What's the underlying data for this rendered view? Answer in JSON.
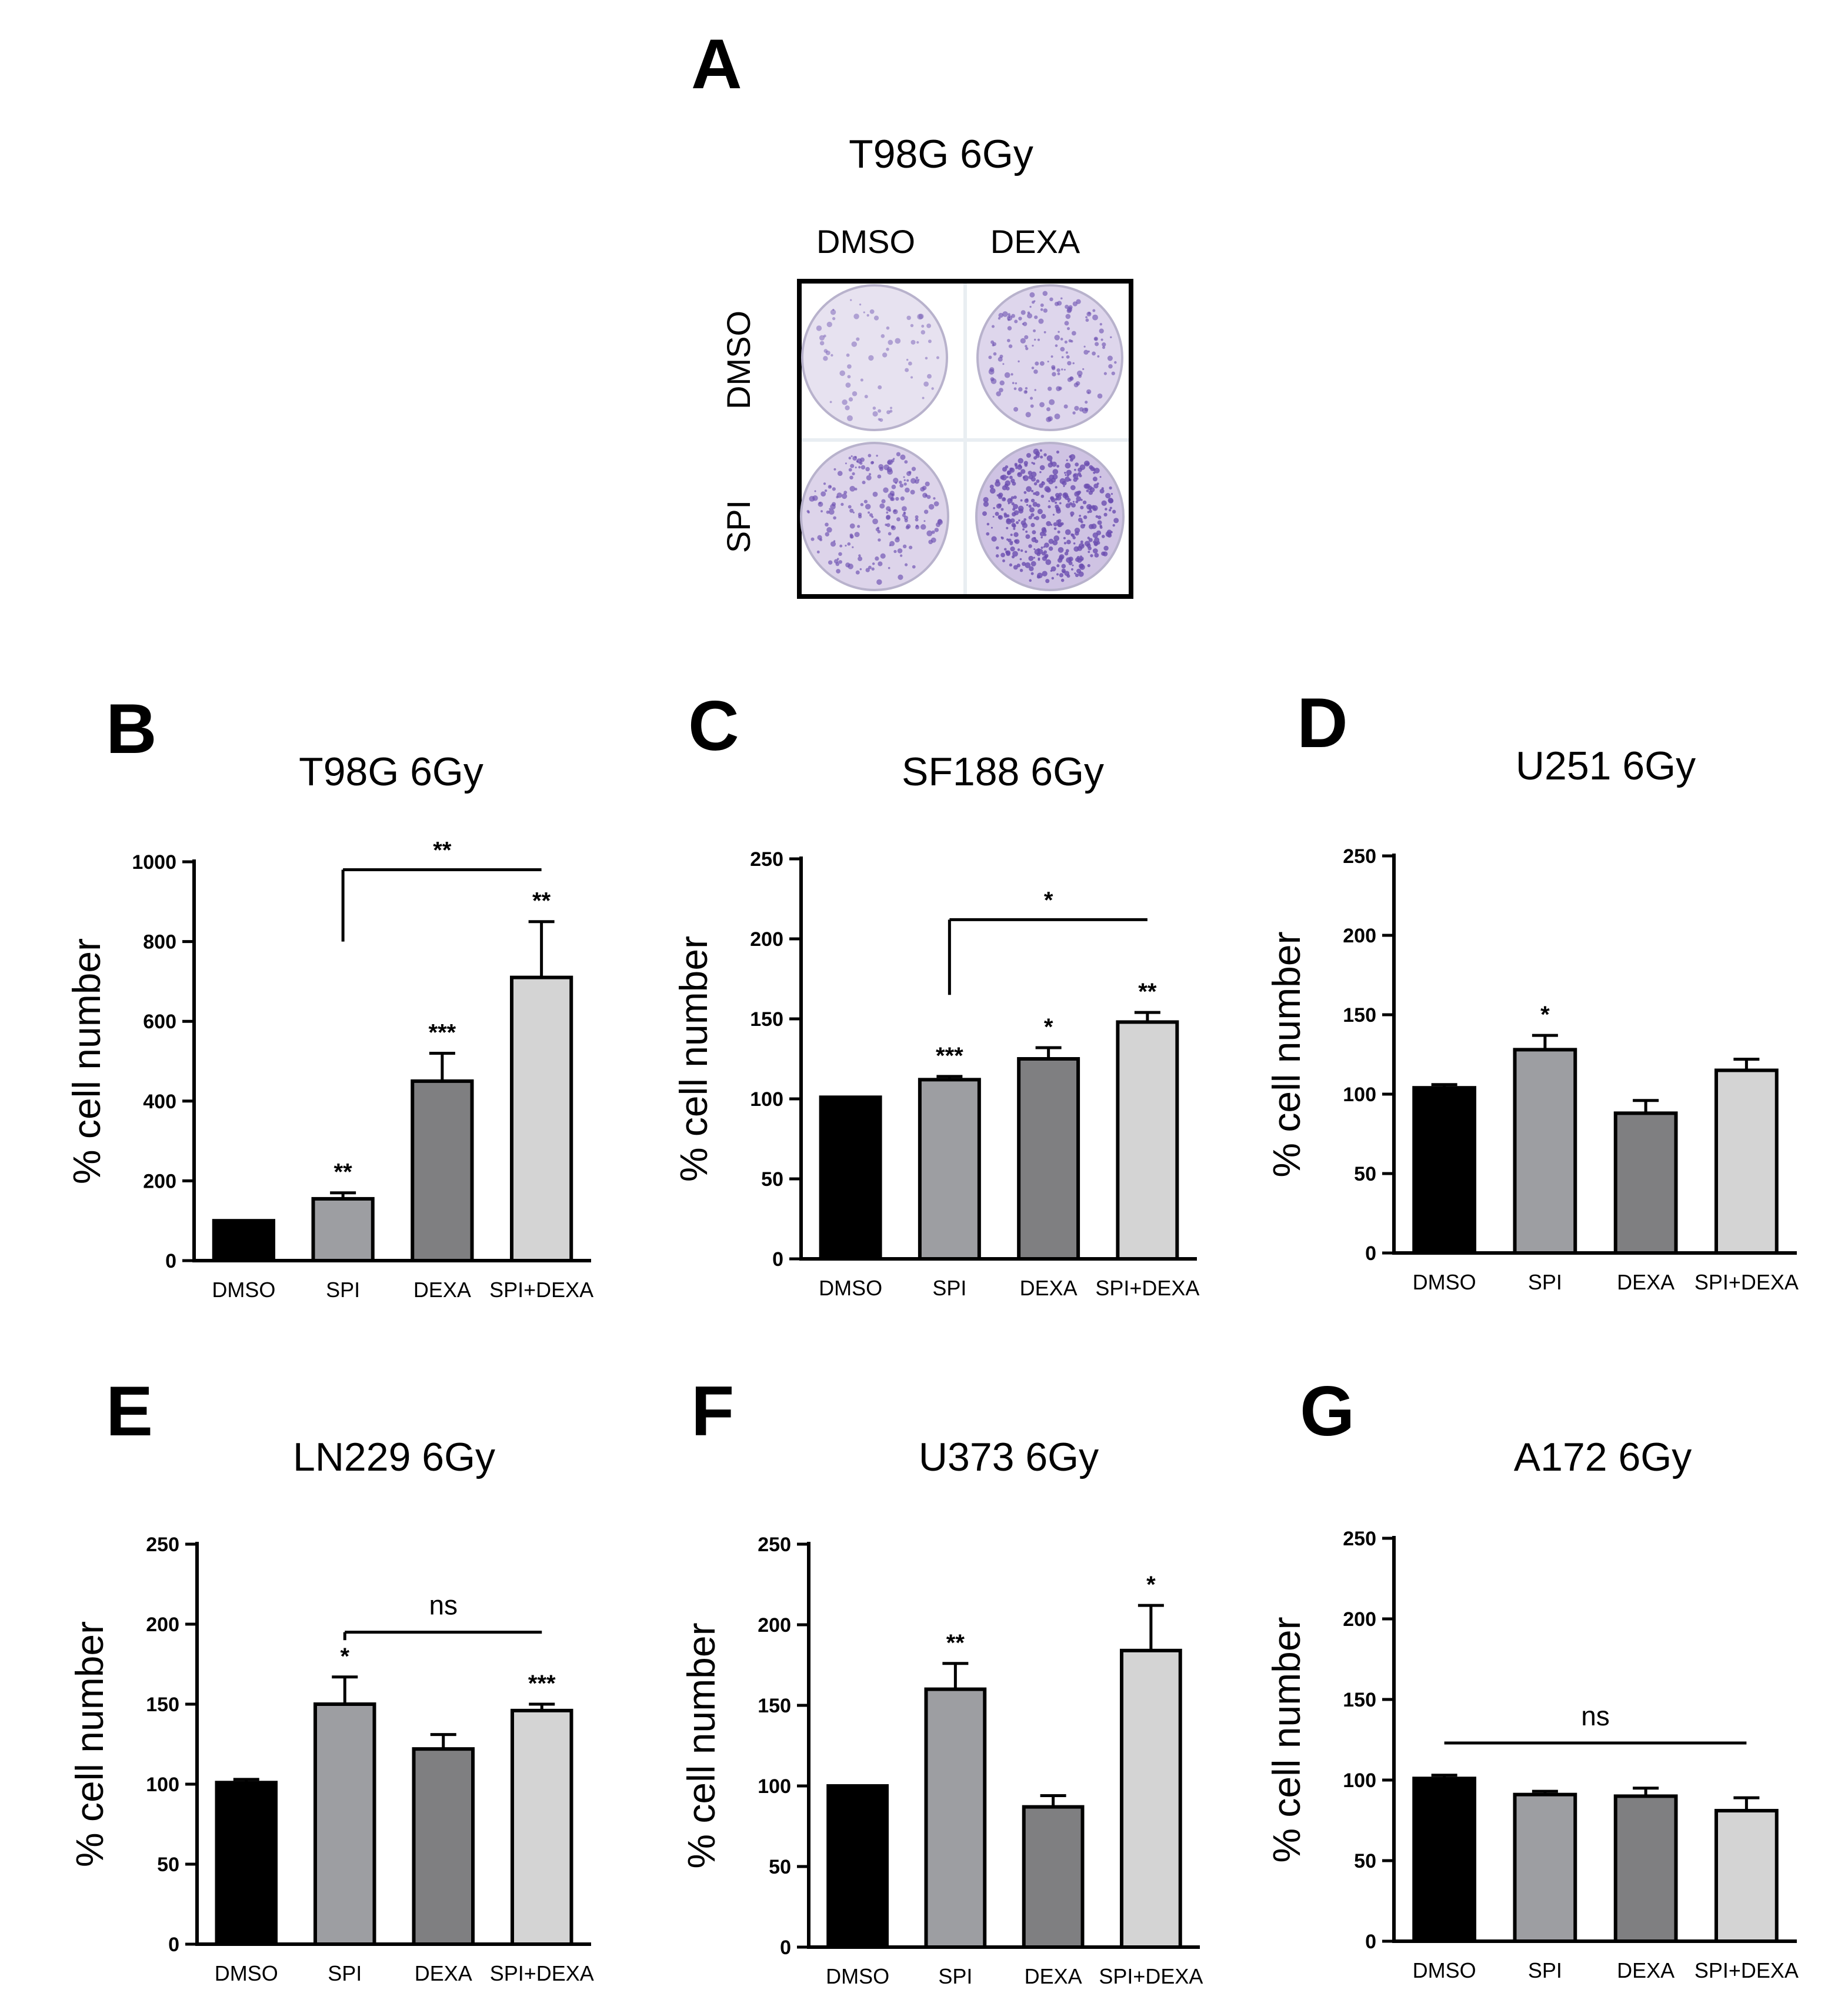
{
  "colors": {
    "DMSO": "#000000",
    "SPI": "#9d9ea2",
    "DEXA": "#7f7f81",
    "SPI+DEXA": "#d4d4d4",
    "stain": "#6b4fb0",
    "plate_bg": "#e6e1f0"
  },
  "panel_a": {
    "letter": "A",
    "title": "T98G   6Gy",
    "col_labels": [
      "DMSO",
      "DEXA"
    ],
    "row_labels": [
      "DMSO",
      "SPI"
    ]
  },
  "chart_data": [
    {
      "id": "B",
      "type": "bar",
      "title": "T98G 6Gy",
      "ylabel": "% cell number",
      "xlabel": "",
      "ylim": [
        0,
        1000
      ],
      "yticks": [
        0,
        200,
        400,
        600,
        800,
        1000
      ],
      "categories": [
        "DMSO",
        "SPI",
        "DEXA",
        "SPI+DEXA"
      ],
      "values": [
        100,
        155,
        450,
        710
      ],
      "errors": [
        0,
        15,
        70,
        140
      ],
      "significance": [
        "",
        "**",
        "***",
        "**"
      ],
      "comparison": {
        "from": 1,
        "to": 3,
        "label": "**",
        "y": 980,
        "drop_y": 800
      }
    },
    {
      "id": "C",
      "type": "bar",
      "title": "SF188 6Gy",
      "ylabel": "% cell number",
      "xlabel": "",
      "ylim": [
        0,
        250
      ],
      "yticks": [
        0,
        50,
        100,
        150,
        200,
        250
      ],
      "categories": [
        "DMSO",
        "SPI",
        "DEXA",
        "SPI+DEXA"
      ],
      "values": [
        101,
        112,
        125,
        148
      ],
      "errors": [
        0,
        2,
        7,
        6
      ],
      "significance": [
        "",
        "***",
        "*",
        "**"
      ],
      "comparison": {
        "from": 1,
        "to": 3,
        "label": "*",
        "y": 212,
        "drop_y": 165
      }
    },
    {
      "id": "D",
      "type": "bar",
      "title": "U251 6Gy",
      "ylabel": "% cell number",
      "xlabel": "",
      "ylim": [
        0,
        250
      ],
      "yticks": [
        0,
        50,
        100,
        150,
        200,
        250
      ],
      "categories": [
        "DMSO",
        "SPI",
        "DEXA",
        "SPI+DEXA"
      ],
      "values": [
        104,
        128,
        88,
        115
      ],
      "errors": [
        2,
        9,
        8,
        7
      ],
      "significance": [
        "",
        "*",
        "",
        ""
      ],
      "comparison": null
    },
    {
      "id": "E",
      "type": "bar",
      "title": "LN229 6Gy",
      "ylabel": "% cell number",
      "xlabel": "",
      "ylim": [
        0,
        250
      ],
      "yticks": [
        0,
        50,
        100,
        150,
        200,
        250
      ],
      "categories": [
        "DMSO",
        "SPI",
        "DEXA",
        "SPI+DEXA"
      ],
      "values": [
        101,
        150,
        122,
        146
      ],
      "errors": [
        2,
        17,
        9,
        4
      ],
      "significance": [
        "",
        "*",
        "",
        "***"
      ],
      "comparison": {
        "from": 1,
        "to": 3,
        "label": "ns",
        "y": 195,
        "drop_y": 190
      }
    },
    {
      "id": "F",
      "type": "bar",
      "title": "U373 6Gy",
      "ylabel": "% cell number",
      "xlabel": "",
      "ylim": [
        0,
        250
      ],
      "yticks": [
        0,
        50,
        100,
        150,
        200,
        250
      ],
      "categories": [
        "DMSO",
        "SPI",
        "DEXA",
        "SPI+DEXA"
      ],
      "values": [
        100,
        160,
        87,
        184
      ],
      "errors": [
        0,
        16,
        7,
        28
      ],
      "significance": [
        "",
        "**",
        "",
        "*"
      ],
      "comparison": null
    },
    {
      "id": "G",
      "type": "bar",
      "title": "A172 6Gy",
      "ylabel": "% cell number",
      "xlabel": "",
      "ylim": [
        0,
        250
      ],
      "yticks": [
        0,
        50,
        100,
        150,
        200,
        250
      ],
      "categories": [
        "DMSO",
        "SPI",
        "DEXA",
        "SPI+DEXA"
      ],
      "values": [
        101,
        91,
        90,
        81
      ],
      "errors": [
        2,
        2,
        5,
        8
      ],
      "significance": [
        "",
        "",
        "",
        ""
      ],
      "comparison": {
        "from": 0,
        "to": 3,
        "label": "ns",
        "y": 123,
        "drop_y": 123
      }
    }
  ]
}
